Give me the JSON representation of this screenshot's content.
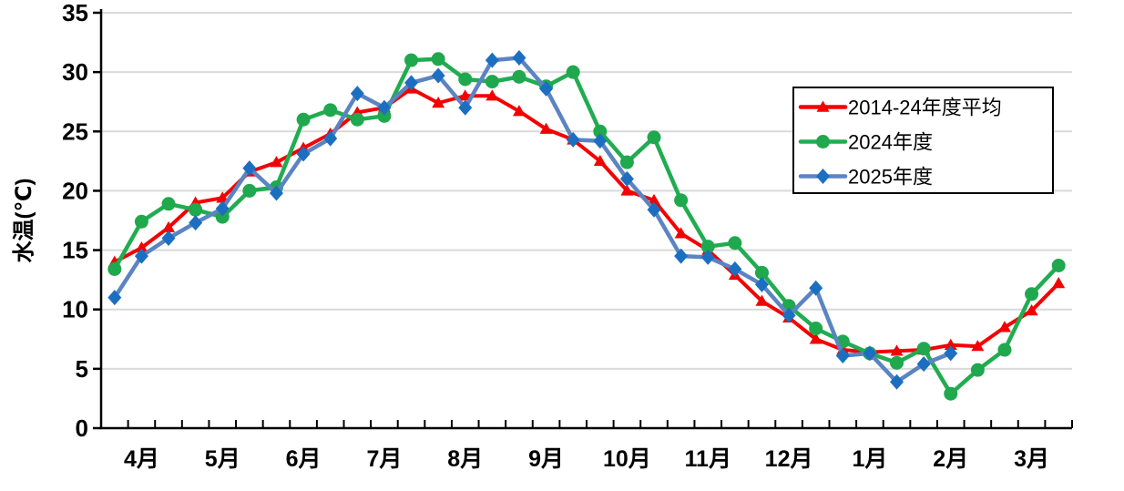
{
  "chart_data": {
    "type": "line",
    "title": "",
    "ylabel": "水温(℃)",
    "ylim": [
      0,
      35
    ],
    "y_ticks": [
      0,
      5,
      10,
      15,
      20,
      25,
      30,
      35
    ],
    "grid": "horizontal",
    "gridline_color": "#d9d9d9",
    "axis_color": "#000000",
    "legend_position": "top-right",
    "points_per_month": 3,
    "x_month_labels": [
      "4月",
      "5月",
      "6月",
      "7月",
      "8月",
      "9月",
      "10月",
      "11月",
      "12月",
      "1月",
      "2月",
      "3月"
    ],
    "series": [
      {
        "name": "2014-24年度平均",
        "marker": "triangle",
        "line_color": "#f40000",
        "marker_color": "#f40000",
        "values": [
          14.0,
          15.2,
          16.9,
          19.0,
          19.4,
          21.6,
          22.4,
          23.6,
          24.8,
          26.6,
          27.0,
          28.6,
          27.4,
          28.0,
          28.0,
          26.7,
          25.2,
          24.3,
          22.5,
          20.0,
          19.2,
          16.4,
          15.0,
          12.9,
          10.7,
          9.3,
          7.5,
          6.6,
          6.4,
          6.5,
          6.6,
          7.0,
          6.9,
          8.5,
          9.9,
          12.2
        ]
      },
      {
        "name": "2024年度",
        "marker": "circle",
        "line_color": "#21ac51",
        "marker_color": "#1fa84d",
        "values": [
          13.4,
          17.4,
          18.9,
          18.4,
          17.8,
          20.0,
          20.3,
          26.0,
          26.8,
          26.0,
          26.3,
          31.0,
          31.1,
          29.4,
          29.2,
          29.6,
          28.8,
          30.0,
          25.0,
          22.4,
          24.5,
          19.2,
          15.3,
          15.6,
          13.1,
          10.3,
          8.4,
          7.3,
          6.3,
          5.5,
          6.7,
          2.9,
          4.9,
          6.6,
          11.3,
          13.7
        ]
      },
      {
        "name": "2025年度",
        "marker": "diamond",
        "line_color": "#5b84c2",
        "marker_color": "#1c6fc0",
        "values": [
          11.0,
          14.5,
          16.0,
          17.3,
          18.5,
          21.9,
          19.8,
          23.1,
          24.4,
          28.2,
          27.0,
          29.1,
          29.7,
          27.0,
          31.0,
          31.2,
          28.6,
          24.3,
          24.2,
          21.0,
          18.4,
          14.5,
          14.4,
          13.4,
          12.1,
          9.5,
          11.8,
          6.1,
          6.3,
          3.9,
          5.4,
          6.3
        ]
      }
    ]
  }
}
